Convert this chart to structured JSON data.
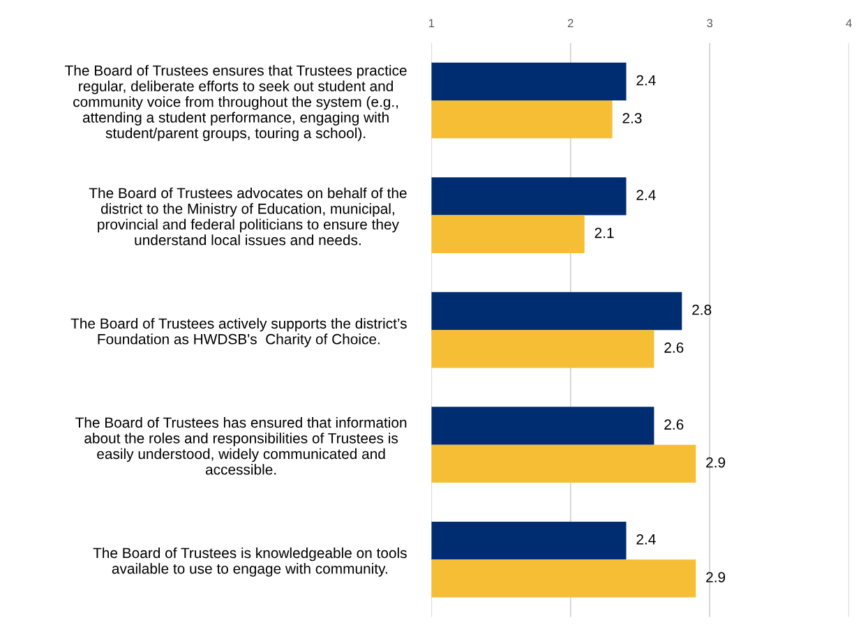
{
  "chart_data": {
    "type": "bar",
    "orientation": "horizontal",
    "categories": [
      "The Board of Trustees ensures that Trustees practice\nregular, deliberate efforts to seek out student and\ncommunity voice from throughout the system (e.g.,\nattending a student performance, engaging with\nstudent/parent groups, touring a school).",
      "The Board of Trustees advocates on behalf of the\ndistrict to the Ministry of Education, municipal,\nprovincial and federal politicians to ensure they\nunderstand local issues and needs.",
      "The Board of Trustees actively supports the district’s\nFoundation as HWDSB's  Charity of Choice.",
      "The Board of Trustees has ensured that information\nabout the roles and responsibilities of Trustees is\neasily understood, widely communicated and\naccessible.",
      "The Board of Trustees is knowledgeable on tools\navailable to use to engage with community."
    ],
    "series": [
      {
        "color": "#002d72",
        "values": [
          2.4,
          2.4,
          2.8,
          2.6,
          2.4
        ]
      },
      {
        "color": "#f6be34",
        "values": [
          2.3,
          2.1,
          2.6,
          2.9,
          2.9
        ]
      }
    ],
    "xlim": [
      1,
      4
    ],
    "xticks": [
      1,
      2,
      3,
      4
    ],
    "grid": "x",
    "data_labels": true
  }
}
